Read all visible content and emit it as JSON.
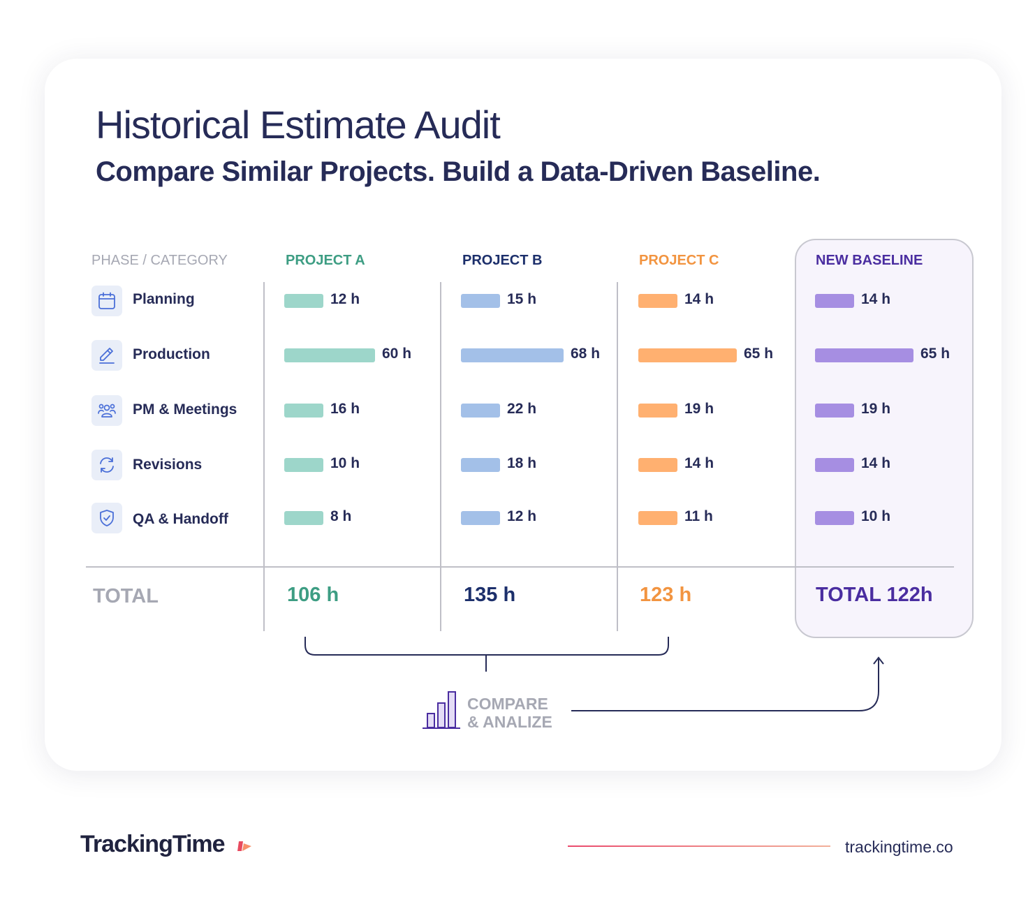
{
  "header": {
    "title": "Historical Estimate Audit",
    "subtitle": "Compare Similar Projects. Build a Data-Driven Baseline."
  },
  "columns": {
    "phase": "PHASE / CATEGORY",
    "project_a": "PROJECT A",
    "project_b": "PROJECT B",
    "project_c": "PROJECT C",
    "baseline": "NEW BASELINE"
  },
  "categories": [
    {
      "label": "Planning",
      "icon": "calendar-icon"
    },
    {
      "label": "Production",
      "icon": "pencil-icon"
    },
    {
      "label": "PM & Meetings",
      "icon": "team-icon"
    },
    {
      "label": "Revisions",
      "icon": "refresh-icon"
    },
    {
      "label": "QA & Handoff",
      "icon": "shield-check-icon"
    }
  ],
  "chart_data": {
    "type": "bar",
    "categories": [
      "Planning",
      "Production",
      "PM & Meetings",
      "Revisions",
      "QA & Handoff"
    ],
    "unit": "h",
    "series": [
      {
        "name": "PROJECT A",
        "values": [
          12,
          60,
          16,
          10,
          8
        ],
        "labels": [
          "12 h",
          "60 h",
          "16 h",
          "10 h",
          "8 h"
        ],
        "color": "#9dd6ca",
        "header_color": "#3d9d83"
      },
      {
        "name": "PROJECT B",
        "values": [
          15,
          68,
          22,
          18,
          12
        ],
        "labels": [
          "15 h",
          "68 h",
          "22 h",
          "18 h",
          "12 h"
        ],
        "color": "#a3c0e8",
        "header_color": "#1c2f6b"
      },
      {
        "name": "PROJECT C",
        "values": [
          14,
          65,
          19,
          14,
          11
        ],
        "labels": [
          "14 h",
          "65 h",
          "19 h",
          "14 h",
          "11 h"
        ],
        "color": "#ffb070",
        "header_color": "#f29440"
      },
      {
        "name": "NEW BASELINE",
        "values": [
          14,
          65,
          19,
          14,
          10
        ],
        "labels": [
          "14 h",
          "65 h",
          "19 h",
          "14 h",
          "10 h"
        ],
        "color": "#a68ee2",
        "header_color": "#4a2da0"
      }
    ]
  },
  "totals": {
    "label": "TOTAL",
    "project_a": "106 h",
    "project_b": "135 h",
    "project_c": "123 h",
    "baseline": "TOTAL 122h"
  },
  "compare": {
    "line1": "COMPARE",
    "line2": "& ANALIZE",
    "icon": "bar-chart-icon"
  },
  "footer": {
    "brand": "TrackingTime",
    "url": "trackingtime.co"
  }
}
